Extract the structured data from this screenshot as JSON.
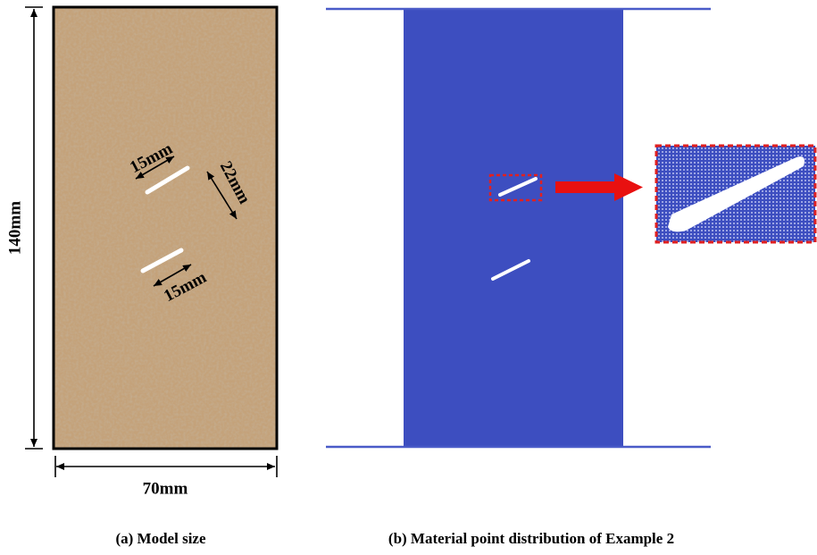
{
  "panel_a": {
    "height_label": "140mm",
    "width_label": "70mm",
    "crack_1_length": "15mm",
    "crack_spacing": "22mm",
    "crack_2_length": "15mm",
    "caption": "(a) Model size"
  },
  "panel_b": {
    "caption": "(b) Material point distribution of Example 2"
  }
}
